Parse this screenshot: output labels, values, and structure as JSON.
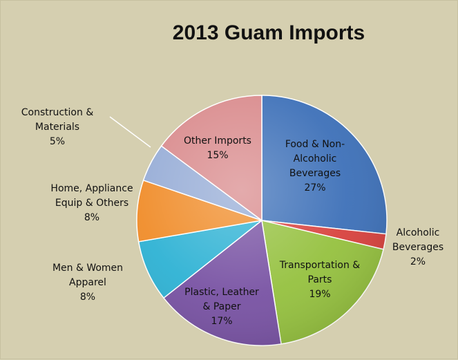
{
  "chart_data": {
    "type": "pie",
    "title": "2013 Guam Imports",
    "slices": [
      {
        "label_lines": [
          "Food & Non-",
          "Alcoholic",
          "Beverages"
        ],
        "pct": "27%",
        "value": 27,
        "color": "#3d70b8"
      },
      {
        "label_lines": [
          "Alcoholic",
          "Beverages"
        ],
        "pct": "2%",
        "value": 2,
        "color": "#d8423e"
      },
      {
        "label_lines": [
          "Transportation &",
          "Parts"
        ],
        "pct": "19%",
        "value": 19,
        "color": "#95c13f"
      },
      {
        "label_lines": [
          "Plastic, Leather",
          "& Paper"
        ],
        "pct": "17%",
        "value": 17,
        "color": "#7852a3"
      },
      {
        "label_lines": [
          "Men & Women",
          "Apparel"
        ],
        "pct": "8%",
        "value": 8,
        "color": "#2eb2d4"
      },
      {
        "label_lines": [
          "Home, Appliance",
          "Equip & Others"
        ],
        "pct": "8%",
        "value": 8,
        "color": "#f08c29"
      },
      {
        "label_lines": [
          "Construction &",
          "Materials"
        ],
        "pct": "5%",
        "value": 5,
        "color": "#96acd6"
      },
      {
        "label_lines": [
          "Other Imports"
        ],
        "pct": "15%",
        "value": 15,
        "color": "#d98a8c"
      }
    ],
    "legend": "none",
    "data_labels": "category-and-percent"
  }
}
